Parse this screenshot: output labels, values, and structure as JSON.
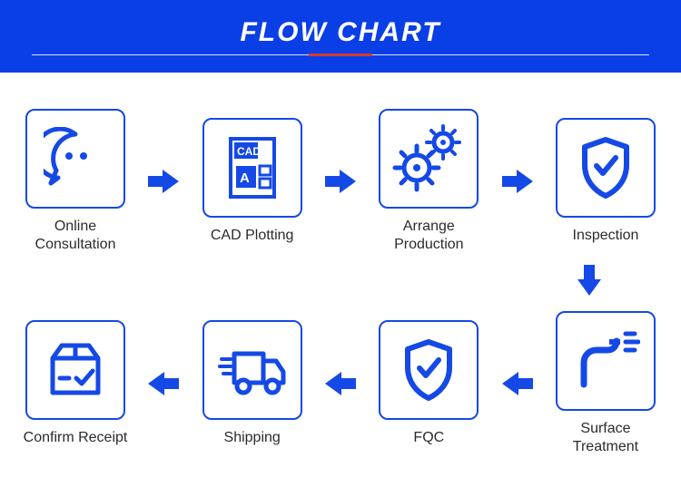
{
  "type": "flowchart",
  "header": {
    "title": "FLOW CHART",
    "background_color": "#0b3fe6",
    "title_color": "#ffffff",
    "title_fontsize": 30,
    "underline_side_color": "#ffffff",
    "underline_center_color": "#d43a2e"
  },
  "styling": {
    "node_border_color": "#1549e6",
    "node_border_radius": 10,
    "node_size": 110,
    "icon_color": "#1549e6",
    "arrow_color": "#1549e6",
    "label_color": "#2b2b2b",
    "label_fontsize": 16,
    "background_color": "#ffffff"
  },
  "nodes": {
    "n1": {
      "label": "Online\nConsultation",
      "icon": "chat-bubble"
    },
    "n2": {
      "label": "CAD Plotting",
      "icon": "cad-file"
    },
    "n3": {
      "label": "Arrange\nProduction",
      "icon": "gears"
    },
    "n4": {
      "label": "Inspection",
      "icon": "shield-check"
    },
    "n5": {
      "label": "Surface\nTreatment",
      "icon": "spray-paint"
    },
    "n6": {
      "label": "FQC",
      "icon": "shield-check"
    },
    "n7": {
      "label": "Shipping",
      "icon": "truck"
    },
    "n8": {
      "label": "Confirm Receipt",
      "icon": "package-check"
    }
  },
  "edges": [
    {
      "from": "n1",
      "to": "n2",
      "dir": "right"
    },
    {
      "from": "n2",
      "to": "n3",
      "dir": "right"
    },
    {
      "from": "n3",
      "to": "n4",
      "dir": "right"
    },
    {
      "from": "n4",
      "to": "n5",
      "dir": "down"
    },
    {
      "from": "n5",
      "to": "n6",
      "dir": "left"
    },
    {
      "from": "n6",
      "to": "n7",
      "dir": "left"
    },
    {
      "from": "n7",
      "to": "n8",
      "dir": "left"
    }
  ],
  "layout": {
    "rows": [
      [
        "n1",
        "n2",
        "n3",
        "n4"
      ],
      [
        "n8",
        "n7",
        "n6",
        "n5"
      ]
    ],
    "row_direction": [
      "right",
      "left"
    ]
  }
}
